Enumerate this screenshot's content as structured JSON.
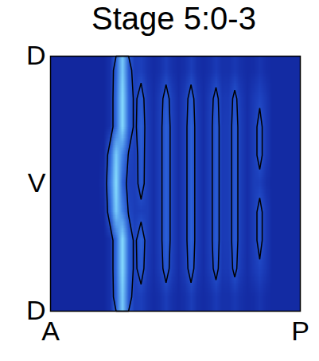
{
  "chart_data": {
    "type": "heatmap",
    "title": "Stage 5:0-3",
    "xlim": [
      0,
      1
    ],
    "ylim": [
      0,
      1
    ],
    "xticks": [
      {
        "value": 0,
        "label": "A"
      },
      {
        "value": 1,
        "label": "P"
      }
    ],
    "yticks": [
      {
        "value": 0,
        "label": "D"
      },
      {
        "value": 0.5,
        "label": "V"
      },
      {
        "value": 1,
        "label": "D"
      }
    ],
    "color_range": [
      0,
      1
    ],
    "contour_level": 0.4,
    "cells": [
      [
        0.12,
        0.12,
        0.12,
        0.12,
        0.12,
        0.12,
        0.12,
        0.12,
        0.12,
        0.2,
        0.55,
        0.95,
        0.5,
        0.3,
        0.32,
        0.22,
        0.16,
        0.2,
        0.3,
        0.2,
        0.16,
        0.2,
        0.3,
        0.2,
        0.16,
        0.2,
        0.28,
        0.2,
        0.2,
        0.26,
        0.2,
        0.16,
        0.18,
        0.24,
        0.18,
        0.15,
        0.15,
        0.15,
        0.15,
        0.15
      ],
      [
        0.12,
        0.12,
        0.12,
        0.12,
        0.12,
        0.12,
        0.12,
        0.12,
        0.12,
        0.2,
        0.6,
        1.0,
        0.55,
        0.35,
        0.5,
        0.28,
        0.18,
        0.3,
        0.5,
        0.3,
        0.18,
        0.3,
        0.5,
        0.28,
        0.18,
        0.3,
        0.48,
        0.26,
        0.28,
        0.46,
        0.28,
        0.18,
        0.28,
        0.36,
        0.26,
        0.15,
        0.15,
        0.15,
        0.15,
        0.15
      ],
      [
        0.12,
        0.12,
        0.12,
        0.12,
        0.12,
        0.12,
        0.12,
        0.12,
        0.12,
        0.2,
        0.6,
        1.0,
        0.55,
        0.35,
        0.55,
        0.3,
        0.18,
        0.32,
        0.55,
        0.32,
        0.18,
        0.32,
        0.55,
        0.3,
        0.18,
        0.32,
        0.52,
        0.28,
        0.3,
        0.5,
        0.3,
        0.18,
        0.3,
        0.48,
        0.28,
        0.15,
        0.15,
        0.15,
        0.15,
        0.15
      ],
      [
        0.12,
        0.12,
        0.12,
        0.12,
        0.12,
        0.12,
        0.12,
        0.12,
        0.14,
        0.55,
        0.95,
        0.7,
        0.38,
        0.3,
        0.32,
        0.3,
        0.18,
        0.32,
        0.55,
        0.32,
        0.18,
        0.32,
        0.55,
        0.3,
        0.18,
        0.32,
        0.52,
        0.28,
        0.3,
        0.5,
        0.3,
        0.18,
        0.3,
        0.48,
        0.28,
        0.15,
        0.15,
        0.15,
        0.15,
        0.15
      ],
      [
        0.12,
        0.12,
        0.12,
        0.12,
        0.12,
        0.12,
        0.12,
        0.12,
        0.18,
        0.65,
        1.0,
        0.55,
        0.32,
        0.3,
        0.5,
        0.3,
        0.18,
        0.32,
        0.55,
        0.32,
        0.18,
        0.32,
        0.55,
        0.3,
        0.18,
        0.32,
        0.52,
        0.28,
        0.3,
        0.5,
        0.3,
        0.18,
        0.3,
        0.32,
        0.2,
        0.15,
        0.15,
        0.15,
        0.15,
        0.15
      ],
      [
        0.12,
        0.12,
        0.12,
        0.12,
        0.12,
        0.12,
        0.12,
        0.12,
        0.14,
        0.55,
        0.95,
        0.7,
        0.38,
        0.3,
        0.52,
        0.3,
        0.18,
        0.32,
        0.55,
        0.32,
        0.18,
        0.32,
        0.55,
        0.3,
        0.18,
        0.32,
        0.52,
        0.28,
        0.3,
        0.5,
        0.3,
        0.18,
        0.3,
        0.48,
        0.28,
        0.15,
        0.15,
        0.15,
        0.15,
        0.15
      ],
      [
        0.12,
        0.12,
        0.12,
        0.12,
        0.12,
        0.12,
        0.12,
        0.12,
        0.12,
        0.2,
        0.6,
        1.0,
        0.55,
        0.35,
        0.55,
        0.3,
        0.18,
        0.32,
        0.55,
        0.32,
        0.18,
        0.32,
        0.55,
        0.3,
        0.18,
        0.32,
        0.52,
        0.28,
        0.3,
        0.5,
        0.3,
        0.18,
        0.3,
        0.48,
        0.28,
        0.15,
        0.15,
        0.15,
        0.15,
        0.15
      ],
      [
        0.12,
        0.12,
        0.12,
        0.12,
        0.12,
        0.12,
        0.12,
        0.12,
        0.12,
        0.2,
        0.6,
        1.0,
        0.55,
        0.35,
        0.5,
        0.28,
        0.18,
        0.3,
        0.5,
        0.3,
        0.18,
        0.3,
        0.5,
        0.28,
        0.18,
        0.3,
        0.48,
        0.26,
        0.28,
        0.46,
        0.28,
        0.18,
        0.28,
        0.36,
        0.26,
        0.15,
        0.15,
        0.15,
        0.15,
        0.15
      ],
      [
        0.12,
        0.12,
        0.12,
        0.12,
        0.12,
        0.12,
        0.12,
        0.12,
        0.12,
        0.2,
        0.55,
        0.95,
        0.5,
        0.3,
        0.32,
        0.22,
        0.16,
        0.2,
        0.3,
        0.2,
        0.16,
        0.2,
        0.3,
        0.2,
        0.16,
        0.2,
        0.28,
        0.2,
        0.2,
        0.26,
        0.2,
        0.16,
        0.18,
        0.24,
        0.18,
        0.15,
        0.15,
        0.15,
        0.15,
        0.15
      ]
    ]
  }
}
